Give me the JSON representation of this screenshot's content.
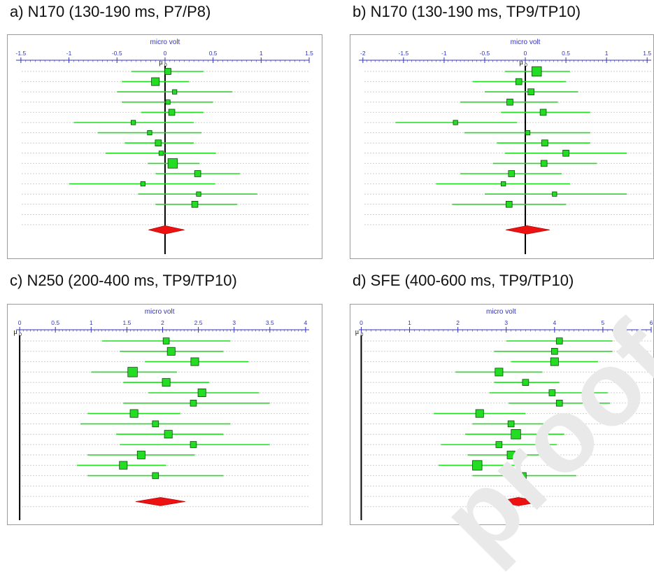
{
  "panels": [
    {
      "title": "a) N170 (130-190 ms, P7/P8)",
      "axis_label": "micro volt",
      "mu_label": "μ",
      "zero_sub": "0",
      "ticks": [
        {
          "v": -1.5,
          "label": "-1.5"
        },
        {
          "v": -1,
          "label": "-1"
        },
        {
          "v": -0.5,
          "label": "-0.5"
        },
        {
          "v": 0,
          "label": "0"
        },
        {
          "v": 0.5,
          "label": "0.5"
        },
        {
          "v": 1,
          "label": "1"
        },
        {
          "v": 1.5,
          "label": "1.5"
        }
      ],
      "xlim": [
        -1.55,
        1.5
      ]
    },
    {
      "title": "b) N170 (130-190 ms, TP9/TP10)",
      "axis_label": "micro volt",
      "mu_label": "μ",
      "zero_sub": "0",
      "ticks": [
        {
          "v": -2,
          "label": "-2"
        },
        {
          "v": -1.5,
          "label": "-1.5"
        },
        {
          "v": -1,
          "label": "-1"
        },
        {
          "v": -0.5,
          "label": "-0.5"
        },
        {
          "v": 0,
          "label": "0"
        },
        {
          "v": 0.5,
          "label": "0.5"
        },
        {
          "v": 1,
          "label": "1"
        },
        {
          "v": 1.5,
          "label": "1.5"
        }
      ],
      "xlim": [
        -2.05,
        1.55
      ]
    },
    {
      "title": "c) N250 (200-400 ms, TP9/TP10)",
      "axis_label": "micro volt",
      "mu_label": "μ",
      "zero_sub": "0",
      "ticks": [
        {
          "v": 0,
          "label": "0"
        },
        {
          "v": 0.5,
          "label": "0.5"
        },
        {
          "v": 1,
          "label": "1"
        },
        {
          "v": 1.5,
          "label": "1.5"
        },
        {
          "v": 2,
          "label": "2"
        },
        {
          "v": 2.5,
          "label": "2.5"
        },
        {
          "v": 3,
          "label": "3"
        },
        {
          "v": 3.5,
          "label": "3.5"
        },
        {
          "v": 4,
          "label": "4"
        }
      ],
      "xlim": [
        -0.05,
        4.05
      ]
    },
    {
      "title": "d) SFE (400-600 ms, TP9/TP10)",
      "axis_label": "micro volt",
      "mu_label": "μ",
      "zero_sub": "0",
      "ticks": [
        {
          "v": 0,
          "label": "0"
        },
        {
          "v": 1,
          "label": "1"
        },
        {
          "v": 2,
          "label": "2"
        },
        {
          "v": 3,
          "label": "3"
        },
        {
          "v": 4,
          "label": "4"
        },
        {
          "v": 5,
          "label": "5"
        },
        {
          "v": 6,
          "label": "6"
        }
      ],
      "xlim": [
        -0.05,
        6.0
      ]
    }
  ],
  "colors": {
    "marker": "#22dd22",
    "ci_line": "#22dd22",
    "diamond": "#ee1111",
    "axis": "#3333bb",
    "zero_line": "#000000"
  },
  "watermark": "proof",
  "chart_data": [
    {
      "type": "forest",
      "title": "a) N170 (130-190 ms, P7/P8)",
      "xlabel": "micro volt",
      "xlim": [
        -1.5,
        1.5
      ],
      "studies": [
        {
          "est": 0.03,
          "lo": -0.35,
          "hi": 0.4,
          "weight": 2
        },
        {
          "est": -0.1,
          "lo": -0.45,
          "hi": 0.25,
          "weight": 3
        },
        {
          "est": 0.1,
          "lo": -0.5,
          "hi": 0.7,
          "weight": 1
        },
        {
          "est": 0.03,
          "lo": -0.45,
          "hi": 0.5,
          "weight": 1
        },
        {
          "est": 0.07,
          "lo": -0.25,
          "hi": 0.4,
          "weight": 2
        },
        {
          "est": -0.33,
          "lo": -0.95,
          "hi": 0.3,
          "weight": 1
        },
        {
          "est": -0.16,
          "lo": -0.7,
          "hi": 0.38,
          "weight": 1
        },
        {
          "est": -0.07,
          "lo": -0.42,
          "hi": 0.3,
          "weight": 2
        },
        {
          "est": -0.04,
          "lo": -0.62,
          "hi": 0.53,
          "weight": 1
        },
        {
          "est": 0.08,
          "lo": -0.18,
          "hi": 0.36,
          "weight": 4
        },
        {
          "est": 0.34,
          "lo": -0.1,
          "hi": 0.78,
          "weight": 2
        },
        {
          "est": -0.23,
          "lo": -1.0,
          "hi": 0.52,
          "weight": 1
        },
        {
          "est": 0.35,
          "lo": -0.28,
          "hi": 0.96,
          "weight": 1
        },
        {
          "est": 0.31,
          "lo": -0.1,
          "hi": 0.75,
          "weight": 2
        }
      ],
      "pooled": {
        "est": 0.0,
        "lo": -0.07,
        "hi": 0.1
      }
    },
    {
      "type": "forest",
      "title": "b) N170 (130-190 ms, TP9/TP10)",
      "xlabel": "micro volt",
      "xlim": [
        -2,
        1.5
      ],
      "studies": [
        {
          "est": 0.14,
          "lo": -0.25,
          "hi": 0.55,
          "weight": 4
        },
        {
          "est": -0.08,
          "lo": -0.65,
          "hi": 0.5,
          "weight": 2
        },
        {
          "est": 0.07,
          "lo": -0.5,
          "hi": 0.65,
          "weight": 2
        },
        {
          "est": -0.19,
          "lo": -0.8,
          "hi": 0.4,
          "weight": 2
        },
        {
          "est": 0.22,
          "lo": -0.3,
          "hi": 0.8,
          "weight": 2
        },
        {
          "est": -0.86,
          "lo": -1.6,
          "hi": -0.1,
          "weight": 1
        },
        {
          "est": 0.03,
          "lo": -0.75,
          "hi": 0.8,
          "weight": 1
        },
        {
          "est": 0.24,
          "lo": -0.35,
          "hi": 0.8,
          "weight": 2
        },
        {
          "est": 0.5,
          "lo": -0.25,
          "hi": 1.25,
          "weight": 2
        },
        {
          "est": 0.23,
          "lo": -0.4,
          "hi": 0.88,
          "weight": 2
        },
        {
          "est": -0.17,
          "lo": -0.8,
          "hi": 0.45,
          "weight": 2
        },
        {
          "est": -0.27,
          "lo": -1.1,
          "hi": 0.55,
          "weight": 1
        },
        {
          "est": 0.36,
          "lo": -0.5,
          "hi": 1.25,
          "weight": 1
        },
        {
          "est": -0.2,
          "lo": -0.9,
          "hi": 0.5,
          "weight": 2
        }
      ],
      "pooled": {
        "est": 0.02,
        "lo": -0.12,
        "hi": 0.18
      }
    },
    {
      "type": "forest",
      "title": "c) N250 (200-400 ms, TP9/TP10)",
      "xlabel": "micro volt",
      "xlim": [
        0,
        4
      ],
      "studies": [
        {
          "est": 2.05,
          "lo": 1.15,
          "hi": 2.95,
          "weight": 2
        },
        {
          "est": 2.12,
          "lo": 1.4,
          "hi": 2.85,
          "weight": 3
        },
        {
          "est": 2.45,
          "lo": 1.75,
          "hi": 3.2,
          "weight": 3
        },
        {
          "est": 1.58,
          "lo": 1.0,
          "hi": 2.2,
          "weight": 4
        },
        {
          "est": 2.05,
          "lo": 1.45,
          "hi": 2.65,
          "weight": 3
        },
        {
          "est": 2.55,
          "lo": 1.8,
          "hi": 3.35,
          "weight": 3
        },
        {
          "est": 2.43,
          "lo": 1.45,
          "hi": 3.5,
          "weight": 2
        },
        {
          "est": 1.6,
          "lo": 0.95,
          "hi": 2.25,
          "weight": 3
        },
        {
          "est": 1.9,
          "lo": 0.85,
          "hi": 2.95,
          "weight": 2
        },
        {
          "est": 2.08,
          "lo": 1.35,
          "hi": 2.85,
          "weight": 3
        },
        {
          "est": 2.43,
          "lo": 1.4,
          "hi": 3.5,
          "weight": 2
        },
        {
          "est": 1.7,
          "lo": 0.95,
          "hi": 2.45,
          "weight": 3
        },
        {
          "est": 1.45,
          "lo": 0.8,
          "hi": 2.05,
          "weight": 3
        },
        {
          "est": 1.9,
          "lo": 0.95,
          "hi": 2.85,
          "weight": 2
        }
      ],
      "pooled": {
        "est": 1.97,
        "lo": 1.76,
        "hi": 2.18
      }
    },
    {
      "type": "forest",
      "title": "d) SFE (400-600 ms, TP9/TP10)",
      "xlabel": "micro volt",
      "xlim": [
        0,
        6
      ],
      "studies": [
        {
          "est": 4.1,
          "lo": 3.0,
          "hi": 5.2,
          "weight": 2
        },
        {
          "est": 4.0,
          "lo": 2.75,
          "hi": 5.2,
          "weight": 2
        },
        {
          "est": 4.0,
          "lo": 3.1,
          "hi": 4.9,
          "weight": 3
        },
        {
          "est": 2.85,
          "lo": 1.95,
          "hi": 3.75,
          "weight": 3
        },
        {
          "est": 3.4,
          "lo": 2.75,
          "hi": 4.1,
          "weight": 2
        },
        {
          "est": 3.95,
          "lo": 2.65,
          "hi": 5.1,
          "weight": 2
        },
        {
          "est": 4.1,
          "lo": 3.05,
          "hi": 5.15,
          "weight": 2
        },
        {
          "est": 2.45,
          "lo": 1.5,
          "hi": 3.4,
          "weight": 3
        },
        {
          "est": 3.1,
          "lo": 2.3,
          "hi": 4.0,
          "weight": 2
        },
        {
          "est": 3.2,
          "lo": 2.15,
          "hi": 4.2,
          "weight": 4
        },
        {
          "est": 2.85,
          "lo": 1.65,
          "hi": 4.05,
          "weight": 2
        },
        {
          "est": 3.1,
          "lo": 2.2,
          "hi": 4.0,
          "weight": 3
        },
        {
          "est": 2.4,
          "lo": 1.6,
          "hi": 3.3,
          "weight": 4
        },
        {
          "est": 3.35,
          "lo": 2.3,
          "hi": 4.45,
          "weight": 2
        }
      ],
      "pooled": {
        "est": 3.25,
        "lo": 3.0,
        "hi": 3.55
      }
    }
  ]
}
